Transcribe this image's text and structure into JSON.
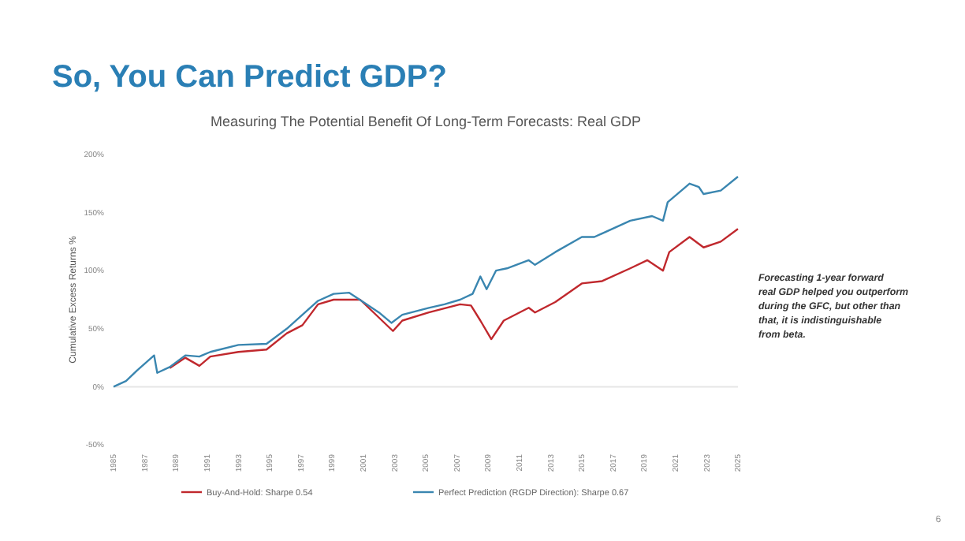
{
  "chart_data": {
    "type": "line",
    "title": "So, You Can Predict GDP?",
    "subtitle": "Measuring The Potential Benefit Of Long-Term Forecasts: Real GDP",
    "ylabel": "Cumulative Excess Returns %",
    "annotations": [
      "Forecasting 1-year forward real GDP helped you outperform during the GFC, but other than that, it is indistinguishable from beta.",
      "6"
    ],
    "xlim": [
      1985,
      2025
    ],
    "xticks": [
      1985,
      1987,
      1989,
      1991,
      1993,
      1995,
      1997,
      1999,
      2001,
      2003,
      2005,
      2007,
      2009,
      2011,
      2013,
      2015,
      2017,
      2019,
      2021,
      2023,
      2025
    ],
    "ylim": [
      -50,
      200
    ],
    "yticks": [
      {
        "value": -50,
        "label": "-50%"
      },
      {
        "value": 0,
        "label": "0%"
      },
      {
        "value": 50,
        "label": "50%"
      },
      {
        "value": 100,
        "label": "100%"
      },
      {
        "value": 150,
        "label": "150%"
      },
      {
        "value": 200,
        "label": "200%"
      }
    ],
    "ref_lines": [
      {
        "axis": "y",
        "value": 0,
        "color": "#e6e6e6"
      }
    ],
    "grid": false,
    "legend": "bottom",
    "marker": "none",
    "line_style": "solid",
    "series": [
      {
        "name": "Buy-And-Hold: Sharpe 0.54",
        "color": "#c0282d",
        "x": [
          1988.6,
          1989.6,
          1990.5,
          1991.2,
          1993,
          1994.8,
          1996.1,
          1997.1,
          1998.1,
          1999.1,
          2000.8,
          2001.5,
          2002.2,
          2002.9,
          2003.5,
          2005.2,
          2007.2,
          2007.9,
          2008.5,
          2009.2,
          2010,
          2011.6,
          2012,
          2013.3,
          2015,
          2016.3,
          2018.1,
          2019.2,
          2020.2,
          2020.6,
          2021.9,
          2022.8,
          2023.9,
          2025
        ],
        "values": [
          16,
          25,
          18,
          26,
          30,
          32,
          46,
          53,
          71,
          75,
          75,
          66,
          57,
          48,
          57,
          64,
          71,
          70,
          57,
          41,
          57,
          68,
          64,
          73,
          89,
          91,
          102,
          109,
          100,
          116,
          129,
          120,
          125,
          136
        ]
      },
      {
        "name": "Perfect Prediction (RGDP Direction): Sharpe 0.67",
        "color": "#3a86b0",
        "x": [
          1985,
          1985.8,
          1986.5,
          1987.6,
          1987.8,
          1988.6,
          1989.6,
          1990.5,
          1991.2,
          1993,
          1994.8,
          1996.1,
          1997.1,
          1998.1,
          1999.1,
          2000.1,
          2001,
          2002,
          2002.8,
          2003.5,
          2005.2,
          2006.2,
          2007.2,
          2008,
          2008.5,
          2008.9,
          2009.5,
          2010.2,
          2011.6,
          2012,
          2013.3,
          2015,
          2015.8,
          2018.1,
          2019.5,
          2020.2,
          2020.5,
          2021.9,
          2022.5,
          2022.8,
          2023.9,
          2025
        ],
        "values": [
          0,
          5,
          14,
          27,
          12,
          17,
          27,
          26,
          30,
          36,
          37,
          50,
          62,
          74,
          80,
          81,
          73,
          64,
          55,
          62,
          68,
          71,
          75,
          80,
          95,
          84,
          100,
          102,
          109,
          105,
          116,
          129,
          129,
          143,
          147,
          143,
          159,
          175,
          172,
          166,
          169,
          181
        ]
      }
    ]
  }
}
